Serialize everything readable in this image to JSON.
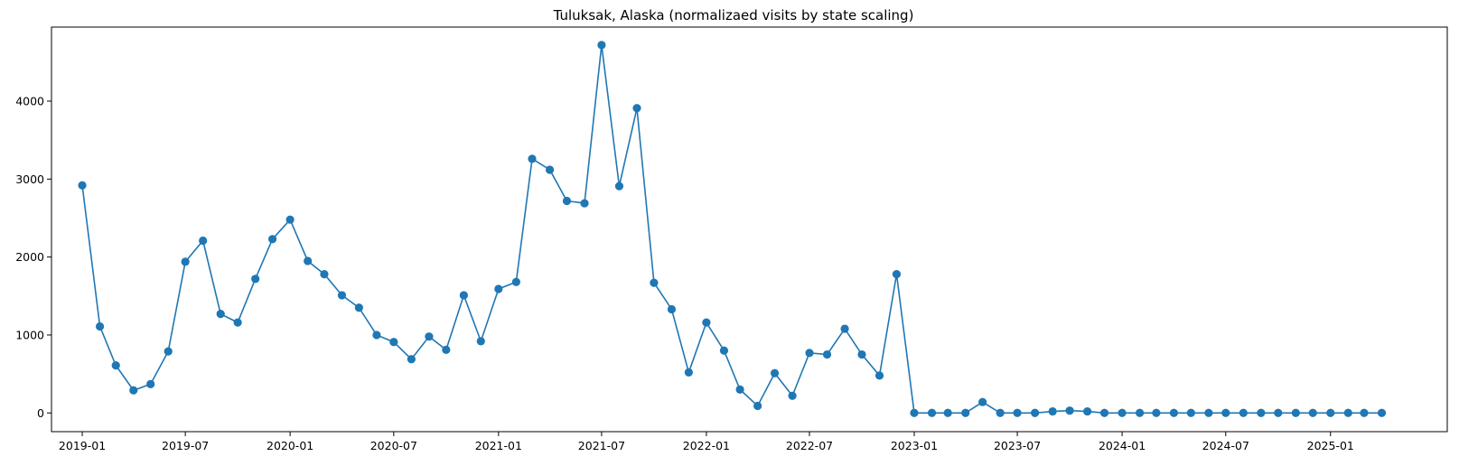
{
  "chart_data": {
    "type": "line",
    "title": "Tuluksak, Alaska (normalizaed visits by state scaling)",
    "xlabel": "",
    "ylabel": "",
    "x_axis": "date",
    "xlim": [
      "2018-11-08",
      "2025-07-25"
    ],
    "ylim": [
      -240,
      4950
    ],
    "xticks": [
      "2019-01",
      "2019-07",
      "2020-01",
      "2020-07",
      "2021-01",
      "2021-07",
      "2022-01",
      "2022-07",
      "2023-01",
      "2023-07",
      "2024-01",
      "2024-07",
      "2025-01"
    ],
    "yticks": [
      0,
      1000,
      2000,
      3000,
      4000
    ],
    "grid": false,
    "marker": "circle",
    "color": "#1f77b4",
    "series": [
      {
        "x": [
          "2019-01",
          "2019-02",
          "2019-03",
          "2019-04",
          "2019-05",
          "2019-06",
          "2019-07",
          "2019-08",
          "2019-09",
          "2019-10",
          "2019-11",
          "2019-12",
          "2020-01",
          "2020-02",
          "2020-03",
          "2020-04",
          "2020-05",
          "2020-06",
          "2020-07",
          "2020-08",
          "2020-09",
          "2020-10",
          "2020-11",
          "2020-12",
          "2021-01",
          "2021-02",
          "2021-03",
          "2021-04",
          "2021-05",
          "2021-06",
          "2021-07",
          "2021-08",
          "2021-09",
          "2021-10",
          "2021-11",
          "2021-12",
          "2022-01",
          "2022-02",
          "2022-03",
          "2022-04",
          "2022-05",
          "2022-06",
          "2022-07",
          "2022-08",
          "2022-09",
          "2022-10",
          "2022-11",
          "2022-12",
          "2023-01",
          "2023-02",
          "2023-03",
          "2023-04",
          "2023-05",
          "2023-06",
          "2023-07",
          "2023-08",
          "2023-09",
          "2023-10",
          "2023-11",
          "2023-12",
          "2024-01",
          "2024-02",
          "2024-03",
          "2024-04",
          "2024-05",
          "2024-06",
          "2024-07",
          "2024-08",
          "2024-09",
          "2024-10",
          "2024-11",
          "2024-12",
          "2025-01",
          "2025-02",
          "2025-03",
          "2025-04"
        ],
        "values": [
          2920,
          1110,
          610,
          290,
          370,
          790,
          1940,
          2210,
          1270,
          1160,
          1720,
          2230,
          2480,
          1950,
          1780,
          1510,
          1350,
          1000,
          910,
          690,
          980,
          810,
          1510,
          920,
          1590,
          1680,
          3260,
          3120,
          2720,
          2690,
          4720,
          2910,
          3910,
          1670,
          1330,
          520,
          1160,
          800,
          300,
          90,
          510,
          220,
          770,
          750,
          1080,
          750,
          480,
          1780,
          0,
          0,
          0,
          0,
          140,
          0,
          0,
          0,
          20,
          30,
          20,
          0,
          0,
          0,
          0,
          0,
          0,
          0,
          0,
          0,
          0,
          0,
          0,
          0,
          0,
          0,
          0,
          0
        ]
      }
    ]
  }
}
